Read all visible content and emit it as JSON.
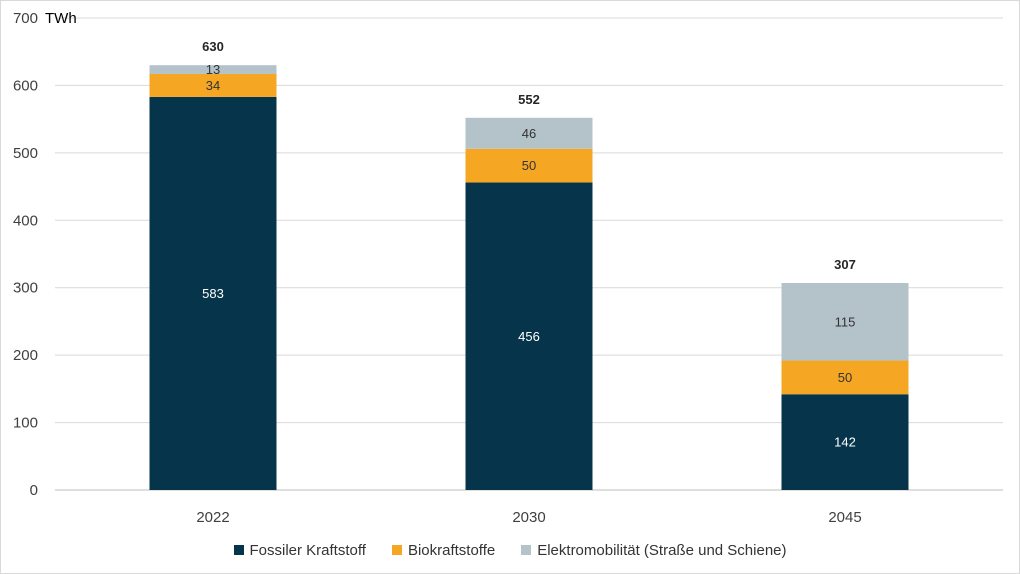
{
  "chart_data": {
    "type": "bar",
    "stacked": true,
    "unit_label": "TWh",
    "categories": [
      "2022",
      "2030",
      "2045"
    ],
    "series": [
      {
        "name": "Fossiler Kraftstoff",
        "values": [
          583,
          456,
          142
        ],
        "color": "#06344a",
        "label_color": "#ffffff"
      },
      {
        "name": "Biokraftstoffe",
        "values": [
          34,
          50,
          50
        ],
        "color": "#f5a623",
        "label_color": "#333333"
      },
      {
        "name": "Elektromobilität (Straße und Schiene)",
        "values": [
          13,
          46,
          115
        ],
        "color": "#b4c2ca",
        "label_color": "#333333"
      }
    ],
    "totals": [
      630,
      552,
      307
    ],
    "ylim": [
      0,
      700
    ],
    "yticks": [
      "0",
      "100",
      "200",
      "300",
      "400",
      "500",
      "600",
      "700"
    ],
    "grid": true,
    "legend_position": "bottom"
  }
}
